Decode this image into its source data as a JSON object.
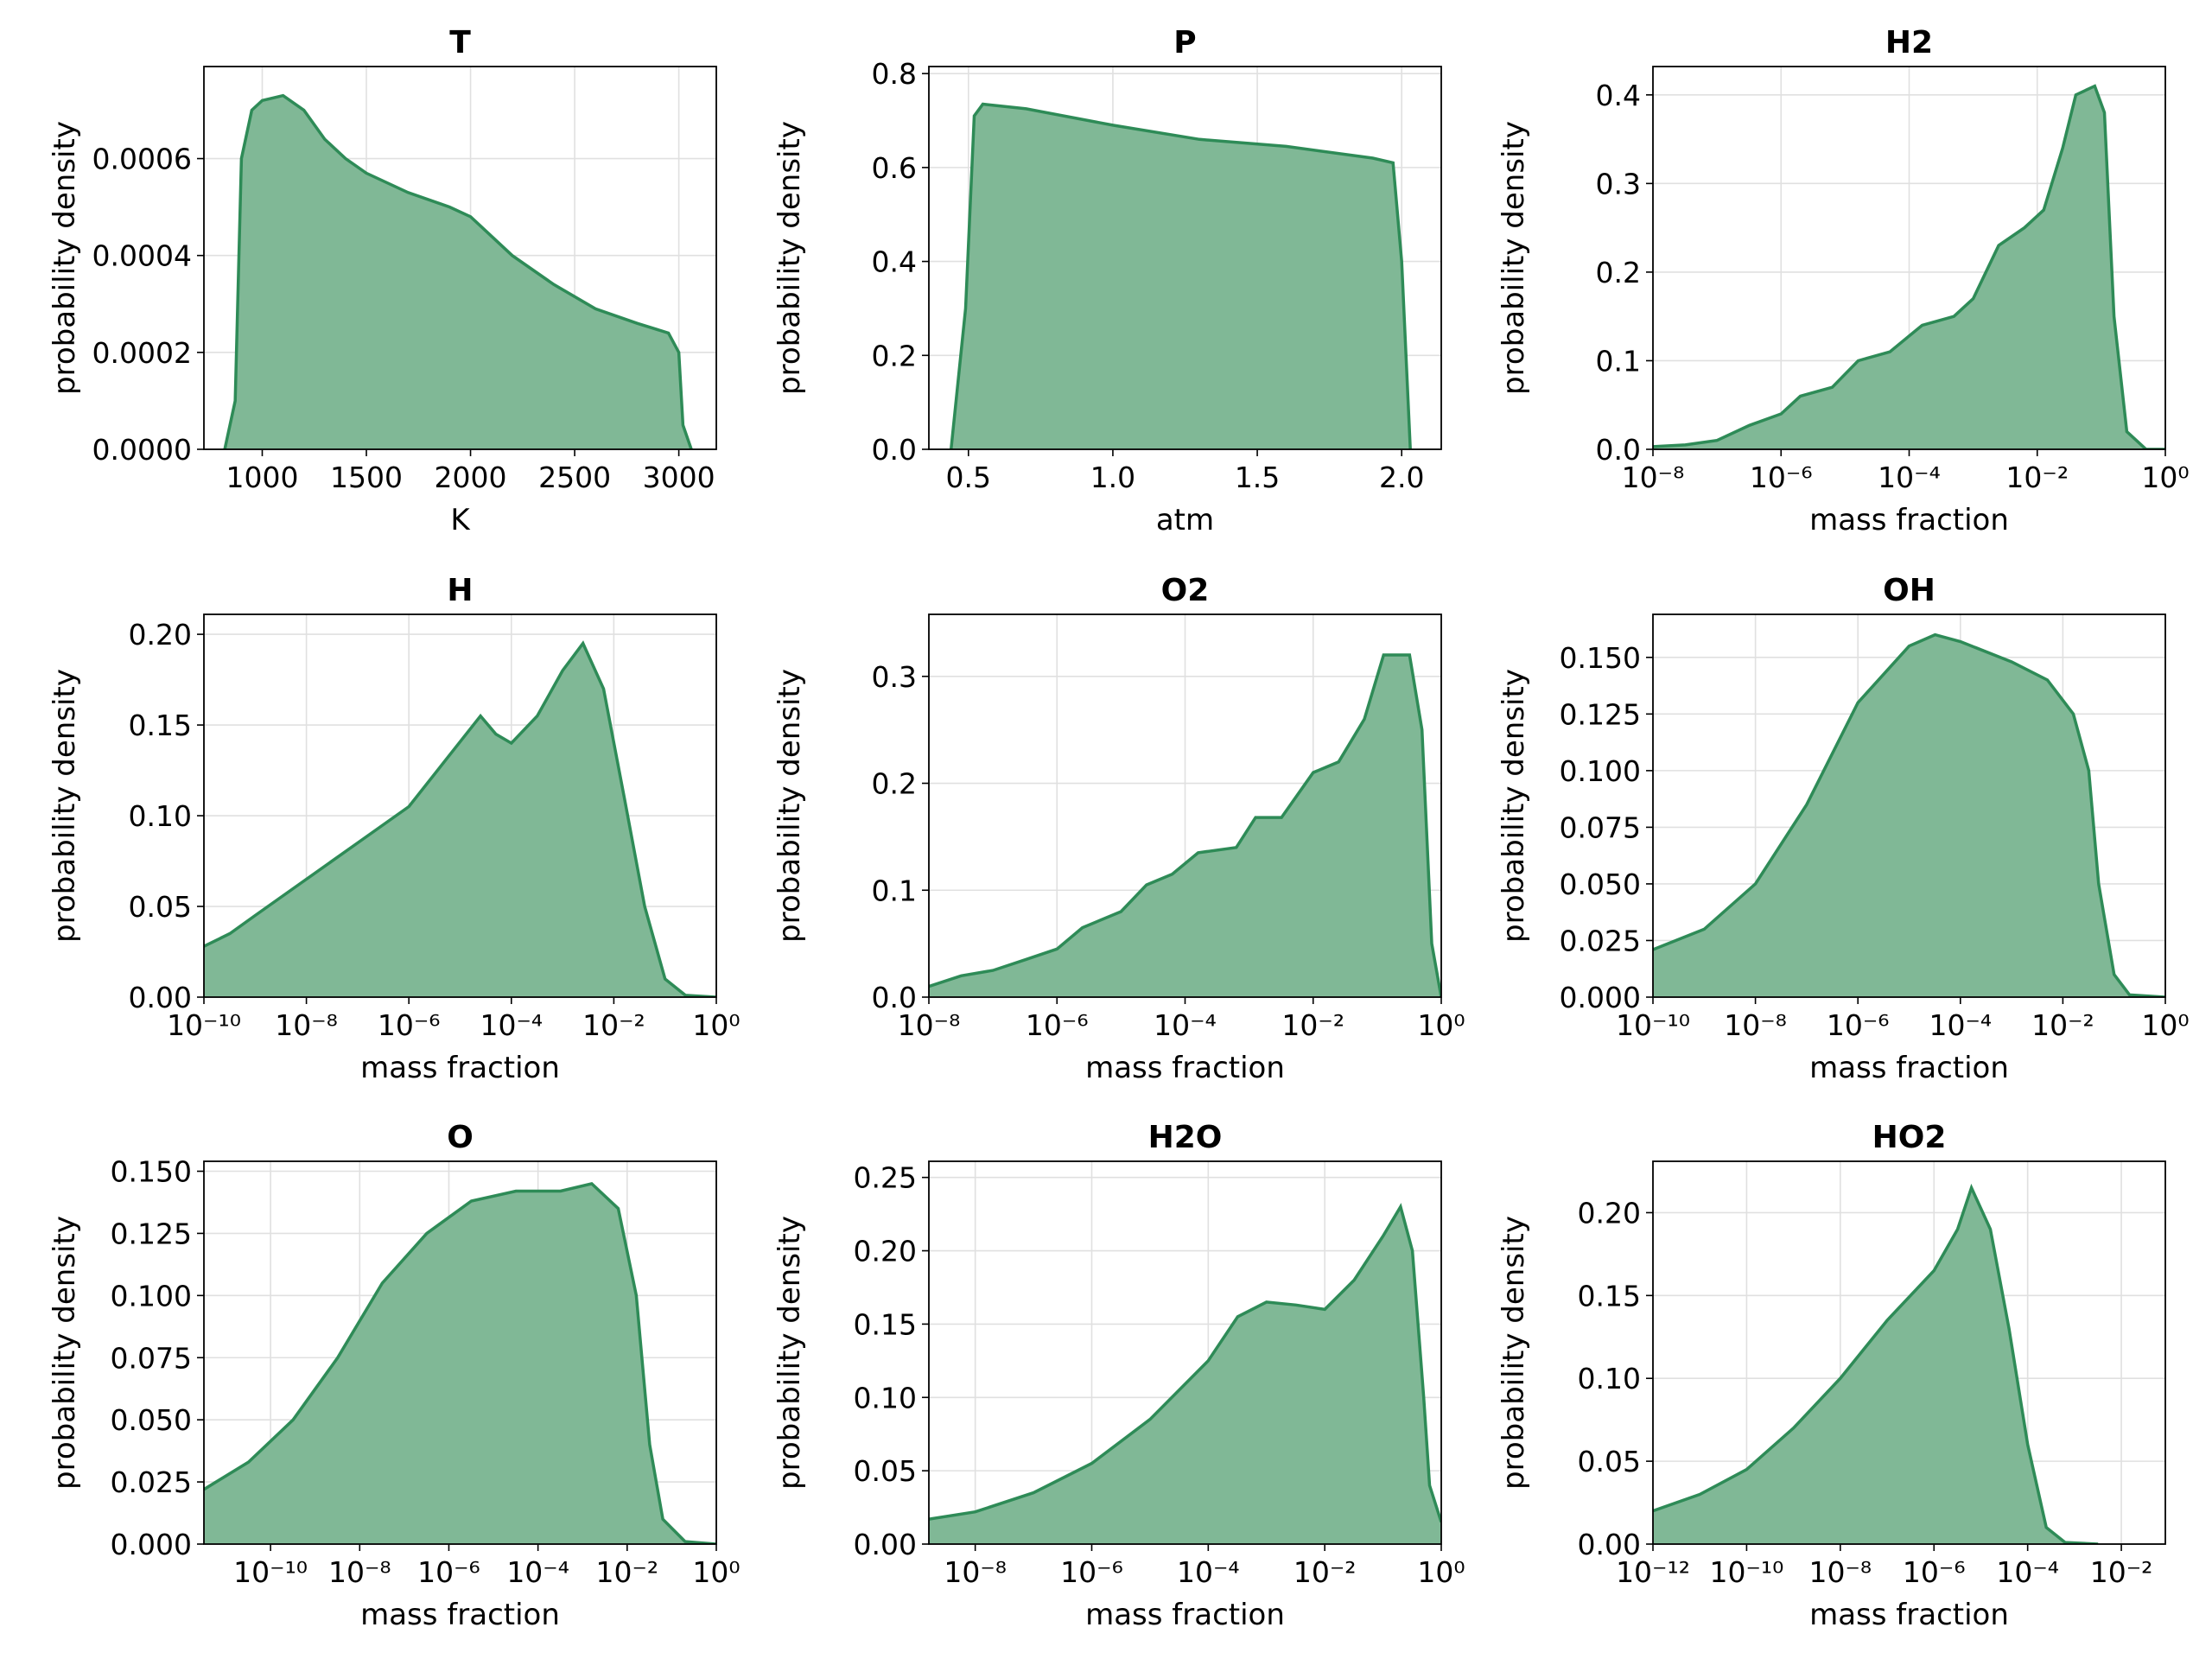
{
  "chart_data": [
    {
      "type": "area",
      "title": "T",
      "xlabel": "K",
      "ylabel": "probability density",
      "log_x": false,
      "grid": true,
      "color": "#2e8b57",
      "fill": "#80b896",
      "x": [
        820,
        870,
        900,
        950,
        1000,
        1100,
        1200,
        1300,
        1400,
        1500,
        1700,
        1900,
        2000,
        2200,
        2400,
        2600,
        2800,
        2950,
        3000,
        3020,
        3060
      ],
      "values": [
        0,
        0.0001,
        0.0006,
        0.0007,
        0.00072,
        0.00073,
        0.0007,
        0.00064,
        0.0006,
        0.00057,
        0.00053,
        0.0005,
        0.00048,
        0.0004,
        0.00034,
        0.00029,
        0.00026,
        0.00024,
        0.0002,
        5e-05,
        0
      ],
      "xlim": [
        720,
        3180
      ],
      "xticks": [
        1000,
        1500,
        2000,
        2500,
        3000
      ],
      "ylim": [
        0,
        0.00079
      ],
      "yticks": [
        {
          "value": 0,
          "label": "0.0000"
        },
        {
          "value": 0.0002,
          "label": "0.0002"
        },
        {
          "value": 0.0004,
          "label": "0.0004"
        },
        {
          "value": 0.0006,
          "label": "0.0006"
        }
      ]
    },
    {
      "type": "area",
      "title": "P",
      "xlabel": "atm",
      "ylabel": "probability density",
      "log_x": false,
      "grid": true,
      "color": "#2e8b57",
      "fill": "#80b896",
      "x": [
        0.44,
        0.49,
        0.52,
        0.55,
        0.7,
        1.0,
        1.3,
        1.6,
        1.9,
        1.97,
        2.0,
        2.03
      ],
      "values": [
        0,
        0.3,
        0.71,
        0.735,
        0.725,
        0.69,
        0.66,
        0.645,
        0.62,
        0.61,
        0.4,
        0
      ],
      "xlim": [
        0.363,
        2.137
      ],
      "xticks": [
        0.5,
        {
          "value": 1,
          "label": "1.0"
        },
        1.5,
        {
          "value": 2,
          "label": "2.0"
        }
      ],
      "ylim": [
        0,
        0.815
      ],
      "yticks": [
        {
          "value": 0,
          "label": "0.0"
        },
        0.2,
        0.4,
        0.6,
        0.8
      ]
    },
    {
      "type": "area",
      "title": "H2",
      "xlabel": "mass fraction",
      "ylabel": "probability density",
      "log_x": true,
      "grid": true,
      "color": "#2e8b57",
      "fill": "#80b896",
      "x": [
        1e-08,
        3.2e-08,
        1e-07,
        3.2e-07,
        1e-06,
        2e-06,
        6.3e-06,
        1.6e-05,
        5e-05,
        0.00016,
        0.0005,
        0.001,
        0.0025,
        0.0063,
        0.0126,
        0.025,
        0.04,
        0.079,
        0.112,
        0.158,
        0.25,
        0.5,
        1
      ],
      "values": [
        0.003,
        0.005,
        0.01,
        0.027,
        0.04,
        0.06,
        0.07,
        0.1,
        0.11,
        0.14,
        0.15,
        0.17,
        0.23,
        0.25,
        0.27,
        0.34,
        0.4,
        0.41,
        0.38,
        0.15,
        0.02,
        0,
        0
      ],
      "xlim": [
        1e-08,
        1
      ],
      "xticks": [
        {
          "value": 1e-08,
          "label": "10⁻⁸"
        },
        {
          "value": 1e-06,
          "label": "10⁻⁶"
        },
        {
          "value": 0.0001,
          "label": "10⁻⁴"
        },
        {
          "value": 0.01,
          "label": "10⁻²"
        },
        {
          "value": 1,
          "label": "10⁰"
        }
      ],
      "ylim": [
        0,
        0.432
      ],
      "yticks": [
        {
          "value": 0,
          "label": "0.0"
        },
        0.1,
        0.2,
        0.3,
        0.4
      ]
    },
    {
      "type": "area",
      "title": "H",
      "xlabel": "mass fraction",
      "ylabel": "probability density",
      "log_x": true,
      "grid": true,
      "color": "#2e8b57",
      "fill": "#80b896",
      "x": [
        1e-10,
        3.2e-10,
        1e-09,
        1e-08,
        1e-07,
        1e-06,
        5e-06,
        2.5e-05,
        5e-05,
        0.0001,
        0.00032,
        0.001,
        0.0025,
        0.0063,
        0.016,
        0.04,
        0.1,
        0.25,
        1
      ],
      "values": [
        0.028,
        0.035,
        0.045,
        0.065,
        0.085,
        0.105,
        0.13,
        0.155,
        0.145,
        0.14,
        0.155,
        0.18,
        0.195,
        0.17,
        0.11,
        0.05,
        0.01,
        0.001,
        0
      ],
      "xlim": [
        1e-10,
        1
      ],
      "xticks": [
        {
          "value": 1e-10,
          "label": "10⁻¹⁰"
        },
        {
          "value": 1e-08,
          "label": "10⁻⁸"
        },
        {
          "value": 1e-06,
          "label": "10⁻⁶"
        },
        {
          "value": 0.0001,
          "label": "10⁻⁴"
        },
        {
          "value": 0.01,
          "label": "10⁻²"
        },
        {
          "value": 1,
          "label": "10⁰"
        }
      ],
      "ylim": [
        0,
        0.211
      ],
      "yticks": [
        {
          "value": 0,
          "label": "0.00"
        },
        0.05,
        {
          "value": 0.1,
          "label": "0.10"
        },
        0.15,
        {
          "value": 0.2,
          "label": "0.20"
        }
      ]
    },
    {
      "type": "area",
      "title": "O2",
      "xlabel": "mass fraction",
      "ylabel": "probability density",
      "log_x": true,
      "grid": true,
      "color": "#2e8b57",
      "fill": "#80b896",
      "x": [
        1e-08,
        3.2e-08,
        1e-07,
        3.2e-07,
        1e-06,
        2.5e-06,
        1e-05,
        2.5e-05,
        6.3e-05,
        0.00016,
        0.00063,
        0.00126,
        0.0032,
        0.01,
        0.025,
        0.063,
        0.126,
        0.32,
        0.5,
        0.71,
        1
      ],
      "values": [
        0.01,
        0.02,
        0.025,
        0.035,
        0.045,
        0.065,
        0.08,
        0.105,
        0.115,
        0.135,
        0.14,
        0.168,
        0.168,
        0.21,
        0.22,
        0.26,
        0.32,
        0.32,
        0.25,
        0.05,
        0
      ],
      "xlim": [
        1e-08,
        1
      ],
      "xticks": [
        {
          "value": 1e-08,
          "label": "10⁻⁸"
        },
        {
          "value": 1e-06,
          "label": "10⁻⁶"
        },
        {
          "value": 0.0001,
          "label": "10⁻⁴"
        },
        {
          "value": 0.01,
          "label": "10⁻²"
        },
        {
          "value": 1,
          "label": "10⁰"
        }
      ],
      "ylim": [
        0,
        0.358
      ],
      "yticks": [
        {
          "value": 0,
          "label": "0.0"
        },
        0.1,
        0.2,
        0.3
      ]
    },
    {
      "type": "area",
      "title": "OH",
      "xlabel": "mass fraction",
      "ylabel": "probability density",
      "log_x": true,
      "grid": true,
      "color": "#2e8b57",
      "fill": "#80b896",
      "x": [
        1e-10,
        1e-09,
        1e-08,
        1e-07,
        1e-06,
        1e-05,
        3.2e-05,
        0.0001,
        0.001,
        0.005,
        0.016,
        0.032,
        0.05,
        0.1,
        0.2,
        1
      ],
      "values": [
        0.021,
        0.03,
        0.05,
        0.085,
        0.13,
        0.155,
        0.16,
        0.157,
        0.148,
        0.14,
        0.125,
        0.1,
        0.05,
        0.01,
        0.001,
        0
      ],
      "xlim": [
        1e-10,
        1
      ],
      "xticks": [
        {
          "value": 1e-10,
          "label": "10⁻¹⁰"
        },
        {
          "value": 1e-08,
          "label": "10⁻⁸"
        },
        {
          "value": 1e-06,
          "label": "10⁻⁶"
        },
        {
          "value": 0.0001,
          "label": "10⁻⁴"
        },
        {
          "value": 0.01,
          "label": "10⁻²"
        },
        {
          "value": 1,
          "label": "10⁰"
        }
      ],
      "ylim": [
        0,
        0.169
      ],
      "yticks": [
        {
          "value": 0,
          "label": "0.000"
        },
        0.025,
        {
          "value": 0.05,
          "label": "0.050"
        },
        0.075,
        {
          "value": 0.1,
          "label": "0.100"
        },
        0.125,
        {
          "value": 0.15,
          "label": "0.150"
        }
      ]
    },
    {
      "type": "area",
      "title": "O",
      "xlabel": "mass fraction",
      "ylabel": "probability density",
      "log_x": true,
      "grid": true,
      "color": "#2e8b57",
      "fill": "#80b896",
      "x": [
        3.2e-12,
        3.2e-11,
        3.2e-10,
        3.2e-09,
        3.2e-08,
        3.2e-07,
        3.2e-06,
        3.2e-05,
        0.00032,
        0.0016,
        0.0063,
        0.016,
        0.032,
        0.063,
        0.2,
        1
      ],
      "values": [
        0.022,
        0.033,
        0.05,
        0.075,
        0.105,
        0.125,
        0.138,
        0.142,
        0.142,
        0.145,
        0.135,
        0.1,
        0.04,
        0.01,
        0.001,
        0
      ],
      "xlim": [
        3.2e-12,
        1
      ],
      "xticks": [
        {
          "value": 1e-10,
          "label": "10⁻¹⁰"
        },
        {
          "value": 1e-08,
          "label": "10⁻⁸"
        },
        {
          "value": 1e-06,
          "label": "10⁻⁶"
        },
        {
          "value": 0.0001,
          "label": "10⁻⁴"
        },
        {
          "value": 0.01,
          "label": "10⁻²"
        },
        {
          "value": 1,
          "label": "10⁰"
        }
      ],
      "ylim": [
        0,
        0.154
      ],
      "yticks": [
        {
          "value": 0,
          "label": "0.000"
        },
        0.025,
        {
          "value": 0.05,
          "label": "0.050"
        },
        0.075,
        {
          "value": 0.1,
          "label": "0.100"
        },
        0.125,
        {
          "value": 0.15,
          "label": "0.150"
        }
      ]
    },
    {
      "type": "area",
      "title": "H2O",
      "xlabel": "mass fraction",
      "ylabel": "probability density",
      "log_x": true,
      "grid": true,
      "color": "#2e8b57",
      "fill": "#80b896",
      "x": [
        1.6e-09,
        1e-08,
        1e-07,
        1e-06,
        1e-05,
        0.0001,
        0.00032,
        0.001,
        0.0032,
        0.01,
        0.032,
        0.1,
        0.2,
        0.32,
        0.5,
        0.63,
        1
      ],
      "values": [
        0.017,
        0.022,
        0.035,
        0.055,
        0.085,
        0.125,
        0.155,
        0.165,
        0.163,
        0.16,
        0.18,
        0.21,
        0.23,
        0.2,
        0.1,
        0.04,
        0.015
      ],
      "xlim": [
        1.6e-09,
        1
      ],
      "xticks": [
        {
          "value": 1e-08,
          "label": "10⁻⁸"
        },
        {
          "value": 1e-06,
          "label": "10⁻⁶"
        },
        {
          "value": 0.0001,
          "label": "10⁻⁴"
        },
        {
          "value": 0.01,
          "label": "10⁻²"
        },
        {
          "value": 1,
          "label": "10⁰"
        }
      ],
      "ylim": [
        0,
        0.261
      ],
      "yticks": [
        {
          "value": 0,
          "label": "0.00"
        },
        0.05,
        {
          "value": 0.1,
          "label": "0.10"
        },
        0.15,
        {
          "value": 0.2,
          "label": "0.20"
        },
        0.25
      ]
    },
    {
      "type": "area",
      "title": "HO2",
      "xlabel": "mass fraction",
      "ylabel": "probability density",
      "log_x": true,
      "grid": true,
      "color": "#2e8b57",
      "fill": "#80b896",
      "x": [
        1e-12,
        1e-11,
        1e-10,
        1e-09,
        1e-08,
        1e-07,
        1e-06,
        3.2e-06,
        6.3e-06,
        1.6e-05,
        4e-05,
        0.0001,
        0.00025,
        0.00063,
        0.0032
      ],
      "values": [
        0.02,
        0.03,
        0.045,
        0.07,
        0.1,
        0.135,
        0.165,
        0.19,
        0.215,
        0.19,
        0.13,
        0.06,
        0.01,
        0.001,
        0
      ],
      "xlim": [
        1e-12,
        0.087
      ],
      "xticks": [
        {
          "value": 1e-12,
          "label": "10⁻¹²"
        },
        {
          "value": 1e-10,
          "label": "10⁻¹⁰"
        },
        {
          "value": 1e-08,
          "label": "10⁻⁸"
        },
        {
          "value": 1e-06,
          "label": "10⁻⁶"
        },
        {
          "value": 0.0001,
          "label": "10⁻⁴"
        },
        {
          "value": 0.01,
          "label": "10⁻²"
        }
      ],
      "ylim": [
        0,
        0.231
      ],
      "yticks": [
        {
          "value": 0,
          "label": "0.00"
        },
        0.05,
        {
          "value": 0.1,
          "label": "0.10"
        },
        0.15,
        {
          "value": 0.2,
          "label": "0.20"
        }
      ]
    }
  ]
}
